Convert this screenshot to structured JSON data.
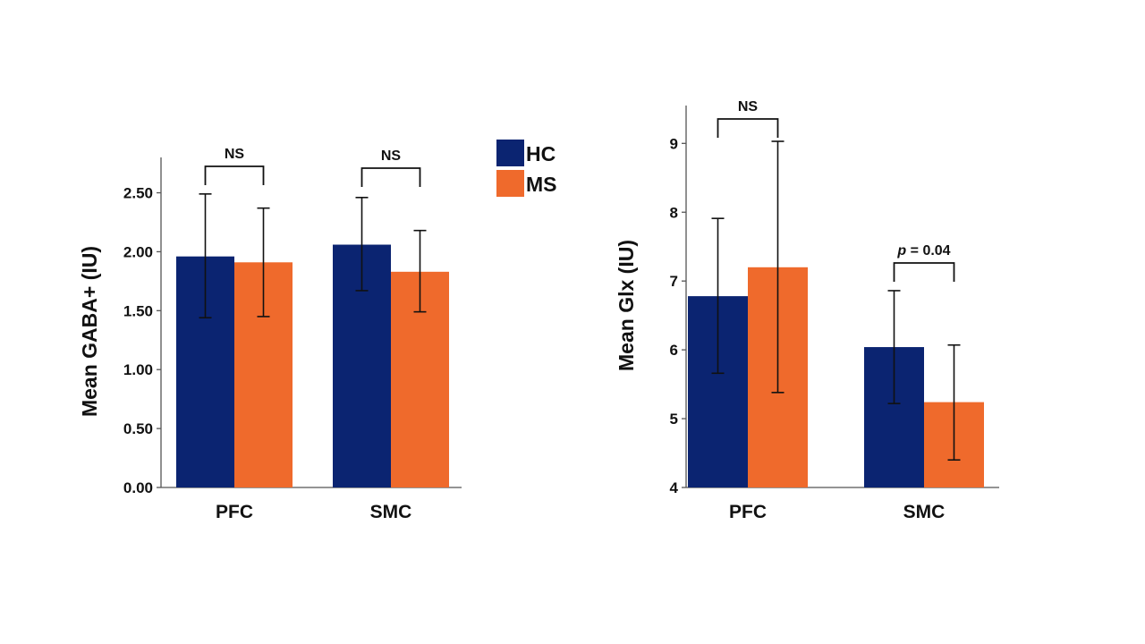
{
  "colors": {
    "HC": "#0b2471",
    "MS": "#ef6a2c"
  },
  "legend": [
    {
      "label": "HC",
      "color": "#0b2471"
    },
    {
      "label": "MS",
      "color": "#ef6a2c"
    }
  ],
  "chart_data": [
    {
      "type": "bar",
      "ylabel": "Mean GABA+ (IU)",
      "categories": [
        "PFC",
        "SMC"
      ],
      "ylim": [
        0,
        2.8
      ],
      "yticks": [
        "0.00",
        "0.50",
        "1.00",
        "1.50",
        "2.00",
        "2.50"
      ],
      "series": [
        {
          "name": "HC",
          "values": [
            1.96,
            2.06
          ],
          "err_low": [
            1.44,
            1.67
          ],
          "err_high": [
            2.49,
            2.46
          ]
        },
        {
          "name": "MS",
          "values": [
            1.91,
            1.83
          ],
          "err_low": [
            1.45,
            1.49
          ],
          "err_high": [
            2.37,
            2.18
          ]
        }
      ],
      "annotations": [
        {
          "category": "PFC",
          "text": "NS"
        },
        {
          "category": "SMC",
          "text": "NS"
        }
      ]
    },
    {
      "type": "bar",
      "ylabel": "Mean Glx (IU)",
      "categories": [
        "PFC",
        "SMC"
      ],
      "ylim": [
        4,
        9.55
      ],
      "yticks": [
        "4",
        "5",
        "6",
        "7",
        "8",
        "9"
      ],
      "series": [
        {
          "name": "HC",
          "values": [
            6.78,
            6.04
          ],
          "err_low": [
            5.66,
            5.22
          ],
          "err_high": [
            7.91,
            6.86
          ]
        },
        {
          "name": "MS",
          "values": [
            7.2,
            5.24
          ],
          "err_low": [
            5.38,
            4.4
          ],
          "err_high": [
            9.03,
            6.07
          ]
        }
      ],
      "annotations": [
        {
          "category": "PFC",
          "text": "NS"
        },
        {
          "category": "SMC",
          "text": "p = 0.04"
        }
      ]
    }
  ]
}
